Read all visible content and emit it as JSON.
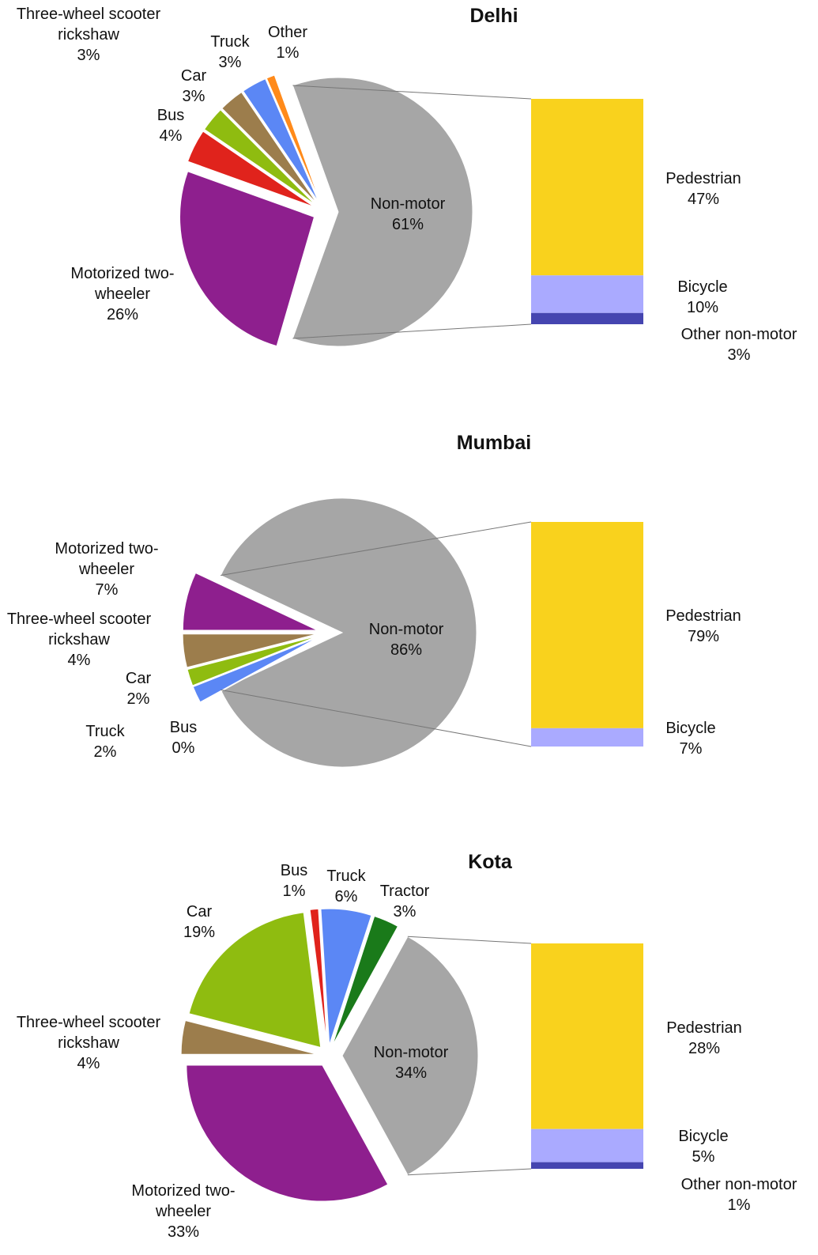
{
  "chart_data": [
    {
      "type": "pie",
      "title": "Delhi",
      "categories": [
        "Non-motor",
        "Other",
        "Truck",
        "Three-wheel scooter rickshaw",
        "Car",
        "Bus",
        "Motorized two-wheeler"
      ],
      "values": [
        61,
        1,
        3,
        3,
        3,
        4,
        26
      ],
      "value_labels": [
        "61%",
        "1%",
        "3%",
        "3%",
        "3%",
        "4%",
        "26%"
      ],
      "colors": [
        "#a6a6a6",
        "#ff8a1a",
        "#5b87f5",
        "#9c7d4c",
        "#8fbc10",
        "#e0231c",
        "#8e1f8e"
      ],
      "breakdown": {
        "categories": [
          "Pedestrian",
          "Bicycle",
          "Other non-motor"
        ],
        "values": [
          47,
          10,
          3
        ],
        "value_labels": [
          "47%",
          "10%",
          "3%"
        ],
        "colors": [
          "#f9d21d",
          "#aaaaff",
          "#4545b0"
        ]
      }
    },
    {
      "type": "pie",
      "title": "Mumbai",
      "categories": [
        "Non-motor",
        "Motorized two-wheeler",
        "Three-wheel scooter rickshaw",
        "Car",
        "Truck",
        "Bus"
      ],
      "values": [
        86,
        7,
        4,
        2,
        2,
        0
      ],
      "value_labels": [
        "86%",
        "7%",
        "4%",
        "2%",
        "2%",
        "0%"
      ],
      "colors": [
        "#a6a6a6",
        "#8e1f8e",
        "#9c7d4c",
        "#8fbc10",
        "#5b87f5",
        "#e0231c"
      ],
      "breakdown": {
        "categories": [
          "Pedestrian",
          "Bicycle"
        ],
        "values": [
          79,
          7
        ],
        "value_labels": [
          "79%",
          "7%"
        ],
        "colors": [
          "#f9d21d",
          "#aaaaff"
        ]
      }
    },
    {
      "type": "pie",
      "title": "Kota",
      "categories": [
        "Non-motor",
        "Tractor",
        "Truck",
        "Bus",
        "Car",
        "Three-wheel scooter rickshaw",
        "Motorized two-wheeler"
      ],
      "values": [
        34,
        3,
        6,
        1,
        19,
        4,
        33
      ],
      "value_labels": [
        "34%",
        "3%",
        "6%",
        "1%",
        "19%",
        "4%",
        "33%"
      ],
      "colors": [
        "#a6a6a6",
        "#1a7a1a",
        "#5b87f5",
        "#e0231c",
        "#8fbc10",
        "#9c7d4c",
        "#8e1f8e"
      ],
      "breakdown": {
        "categories": [
          "Pedestrian",
          "Bicycle",
          "Other non-motor"
        ],
        "values": [
          28,
          5,
          1
        ],
        "value_labels": [
          "28%",
          "5%",
          "1%"
        ],
        "colors": [
          "#f9d21d",
          "#aaaaff",
          "#4545b0"
        ]
      }
    }
  ]
}
